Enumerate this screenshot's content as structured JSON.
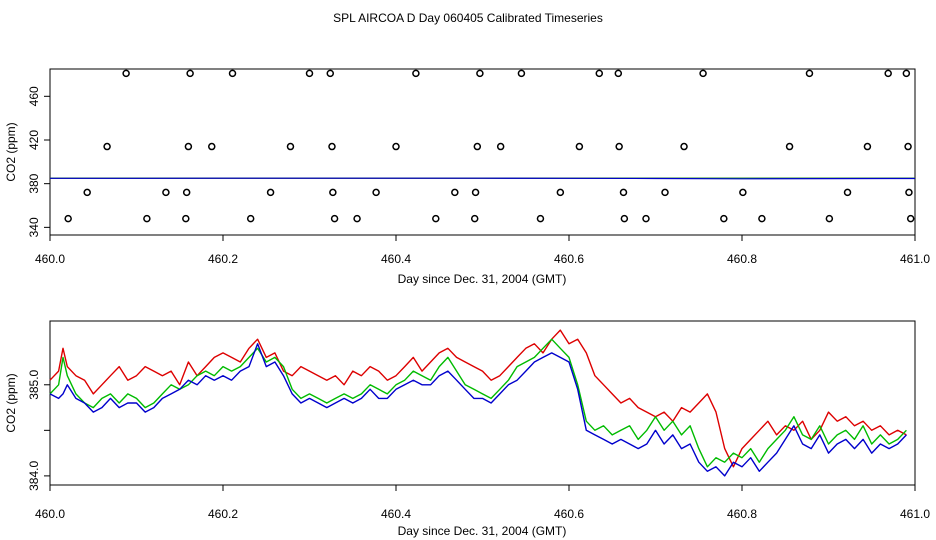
{
  "title": "SPL AIRCOA D  Day 060405  Calibrated Timeseries",
  "colors": {
    "red": "#dd0000",
    "green": "#00bb00",
    "blue": "#0000cc",
    "magenta": "#cc00cc",
    "black": "#000000"
  },
  "chart_data": [
    {
      "type": "scatter",
      "title": "",
      "xlabel": "Day since Dec. 31, 2004 (GMT)",
      "ylabel": "CO2 (ppm)",
      "xlim": [
        460.0,
        461.0
      ],
      "ylim": [
        333,
        485
      ],
      "xticks": [
        460.0,
        460.2,
        460.4,
        460.6,
        460.8,
        461.0
      ],
      "xtick_labels": [
        "460.0",
        "460.2",
        "460.4",
        "460.6",
        "460.8",
        "461.0"
      ],
      "yticks": [
        340,
        380,
        420,
        460
      ],
      "ytick_labels": [
        "340",
        "380",
        "420",
        "460"
      ],
      "points": [
        {
          "x": 460.088,
          "y": 481
        },
        {
          "x": 460.162,
          "y": 481
        },
        {
          "x": 460.211,
          "y": 481
        },
        {
          "x": 460.3,
          "y": 481
        },
        {
          "x": 460.324,
          "y": 481
        },
        {
          "x": 460.423,
          "y": 481
        },
        {
          "x": 460.497,
          "y": 481
        },
        {
          "x": 460.545,
          "y": 481
        },
        {
          "x": 460.635,
          "y": 481
        },
        {
          "x": 460.657,
          "y": 481
        },
        {
          "x": 460.755,
          "y": 481
        },
        {
          "x": 460.878,
          "y": 481
        },
        {
          "x": 460.969,
          "y": 481
        },
        {
          "x": 460.99,
          "y": 481
        },
        {
          "x": 460.066,
          "y": 414
        },
        {
          "x": 460.16,
          "y": 414
        },
        {
          "x": 460.187,
          "y": 414
        },
        {
          "x": 460.278,
          "y": 414
        },
        {
          "x": 460.326,
          "y": 414
        },
        {
          "x": 460.4,
          "y": 414
        },
        {
          "x": 460.494,
          "y": 414
        },
        {
          "x": 460.521,
          "y": 414
        },
        {
          "x": 460.612,
          "y": 414
        },
        {
          "x": 460.658,
          "y": 414
        },
        {
          "x": 460.733,
          "y": 414
        },
        {
          "x": 460.855,
          "y": 414
        },
        {
          "x": 460.945,
          "y": 414
        },
        {
          "x": 460.992,
          "y": 414
        },
        {
          "x": 460.043,
          "y": 372
        },
        {
          "x": 460.134,
          "y": 372
        },
        {
          "x": 460.158,
          "y": 372
        },
        {
          "x": 460.255,
          "y": 372
        },
        {
          "x": 460.327,
          "y": 372
        },
        {
          "x": 460.377,
          "y": 372
        },
        {
          "x": 460.468,
          "y": 372
        },
        {
          "x": 460.492,
          "y": 372
        },
        {
          "x": 460.59,
          "y": 372
        },
        {
          "x": 460.663,
          "y": 372
        },
        {
          "x": 460.711,
          "y": 372
        },
        {
          "x": 460.801,
          "y": 372
        },
        {
          "x": 460.922,
          "y": 372
        },
        {
          "x": 460.993,
          "y": 372
        },
        {
          "x": 460.021,
          "y": 348
        },
        {
          "x": 460.112,
          "y": 348
        },
        {
          "x": 460.157,
          "y": 348
        },
        {
          "x": 460.232,
          "y": 348
        },
        {
          "x": 460.329,
          "y": 348
        },
        {
          "x": 460.355,
          "y": 348
        },
        {
          "x": 460.446,
          "y": 348
        },
        {
          "x": 460.491,
          "y": 348
        },
        {
          "x": 460.567,
          "y": 348
        },
        {
          "x": 460.664,
          "y": 348
        },
        {
          "x": 460.689,
          "y": 348
        },
        {
          "x": 460.779,
          "y": 348
        },
        {
          "x": 460.823,
          "y": 348
        },
        {
          "x": 460.901,
          "y": 348
        },
        {
          "x": 460.995,
          "y": 348
        }
      ],
      "series": [
        {
          "name": "red",
          "color": "#dd0000",
          "x": [
            460.0,
            461.0
          ],
          "values": [
            385.01,
            385.01
          ]
        },
        {
          "name": "magenta",
          "color": "#cc00cc",
          "x": [
            460.0,
            461.0
          ],
          "values": [
            385.0,
            385.0
          ]
        },
        {
          "name": "green",
          "color": "#00bb00",
          "x": [
            460.0,
            461.0
          ],
          "values": [
            384.99,
            384.99
          ]
        },
        {
          "name": "blue",
          "color": "#0000cc",
          "x": [
            460.0,
            460.1,
            460.2,
            460.3,
            460.4,
            460.5,
            460.6,
            460.7,
            460.8,
            460.9,
            461.0
          ],
          "values": [
            384.9,
            384.95,
            384.98,
            385.0,
            385.0,
            385.0,
            384.9,
            384.7,
            384.5,
            384.6,
            384.7
          ]
        }
      ]
    },
    {
      "type": "line",
      "title": "",
      "xlabel": "Day since Dec. 31, 2004 (GMT)",
      "ylabel": "CO2 (ppm)",
      "xlim": [
        460.0,
        461.0
      ],
      "ylim": [
        383.9,
        385.7
      ],
      "xticks": [
        460.0,
        460.2,
        460.4,
        460.6,
        460.8,
        461.0
      ],
      "xtick_labels": [
        "460.0",
        "460.2",
        "460.4",
        "460.6",
        "460.8",
        "461.0"
      ],
      "yticks": [
        384.0,
        384.5,
        385.0
      ],
      "ytick_labels": [
        "384.0",
        "",
        "385.0"
      ],
      "series": [
        {
          "name": "red",
          "color": "#dd0000",
          "x": [
            460.0,
            460.01,
            460.015,
            460.02,
            460.03,
            460.04,
            460.05,
            460.06,
            460.07,
            460.08,
            460.09,
            460.1,
            460.11,
            460.12,
            460.13,
            460.14,
            460.15,
            460.16,
            460.17,
            460.18,
            460.19,
            460.2,
            460.21,
            460.22,
            460.23,
            460.24,
            460.25,
            460.26,
            460.27,
            460.28,
            460.29,
            460.3,
            460.31,
            460.32,
            460.33,
            460.34,
            460.35,
            460.36,
            460.37,
            460.38,
            460.39,
            460.4,
            460.41,
            460.42,
            460.43,
            460.44,
            460.45,
            460.46,
            460.47,
            460.48,
            460.49,
            460.5,
            460.51,
            460.52,
            460.53,
            460.54,
            460.55,
            460.56,
            460.57,
            460.58,
            460.59,
            460.6,
            460.61,
            460.62,
            460.63,
            460.64,
            460.65,
            460.66,
            460.67,
            460.68,
            460.69,
            460.7,
            460.71,
            460.72,
            460.73,
            460.74,
            460.75,
            460.76,
            460.77,
            460.78,
            460.79,
            460.8,
            460.81,
            460.82,
            460.83,
            460.84,
            460.85,
            460.86,
            460.87,
            460.88,
            460.89,
            460.9,
            460.91,
            460.92,
            460.93,
            460.94,
            460.95,
            460.96,
            460.97,
            460.98,
            460.99
          ],
          "values": [
            385.05,
            385.15,
            385.4,
            385.2,
            385.1,
            385.05,
            384.9,
            385.0,
            385.1,
            385.2,
            385.05,
            385.1,
            385.2,
            385.15,
            385.1,
            385.15,
            385.0,
            385.25,
            385.1,
            385.2,
            385.3,
            385.35,
            385.3,
            385.25,
            385.4,
            385.5,
            385.3,
            385.35,
            385.15,
            385.1,
            385.2,
            385.15,
            385.1,
            385.05,
            385.1,
            385.0,
            385.15,
            385.1,
            385.2,
            385.15,
            385.05,
            385.1,
            385.2,
            385.3,
            385.15,
            385.25,
            385.35,
            385.4,
            385.3,
            385.25,
            385.2,
            385.15,
            385.05,
            385.1,
            385.2,
            385.3,
            385.4,
            385.45,
            385.35,
            385.5,
            385.6,
            385.45,
            385.5,
            385.35,
            385.1,
            385.0,
            384.9,
            384.8,
            384.85,
            384.75,
            384.7,
            384.65,
            384.7,
            384.6,
            384.75,
            384.7,
            384.8,
            384.9,
            384.7,
            384.3,
            384.1,
            384.3,
            384.4,
            384.5,
            384.6,
            384.45,
            384.55,
            384.5,
            384.6,
            384.4,
            384.5,
            384.7,
            384.6,
            384.65,
            384.55,
            384.6,
            384.5,
            384.55,
            384.45,
            384.5,
            384.45
          ]
        },
        {
          "name": "green",
          "color": "#00bb00",
          "x": [
            460.0,
            460.01,
            460.015,
            460.02,
            460.03,
            460.04,
            460.05,
            460.06,
            460.07,
            460.08,
            460.09,
            460.1,
            460.11,
            460.12,
            460.13,
            460.14,
            460.15,
            460.16,
            460.17,
            460.18,
            460.19,
            460.2,
            460.21,
            460.22,
            460.23,
            460.24,
            460.25,
            460.26,
            460.27,
            460.28,
            460.29,
            460.3,
            460.31,
            460.32,
            460.33,
            460.34,
            460.35,
            460.36,
            460.37,
            460.38,
            460.39,
            460.4,
            460.41,
            460.42,
            460.43,
            460.44,
            460.45,
            460.46,
            460.47,
            460.48,
            460.49,
            460.5,
            460.51,
            460.52,
            460.53,
            460.54,
            460.55,
            460.56,
            460.57,
            460.58,
            460.59,
            460.6,
            460.61,
            460.62,
            460.63,
            460.64,
            460.65,
            460.66,
            460.67,
            460.68,
            460.69,
            460.7,
            460.71,
            460.72,
            460.73,
            460.74,
            460.75,
            460.76,
            460.77,
            460.78,
            460.79,
            460.8,
            460.81,
            460.82,
            460.83,
            460.84,
            460.85,
            460.86,
            460.87,
            460.88,
            460.89,
            460.9,
            460.91,
            460.92,
            460.93,
            460.94,
            460.95,
            460.96,
            460.97,
            460.98,
            460.99
          ],
          "values": [
            384.9,
            385.0,
            385.3,
            385.1,
            384.9,
            384.8,
            384.75,
            384.85,
            384.9,
            384.8,
            384.9,
            384.85,
            384.75,
            384.8,
            384.9,
            385.0,
            384.95,
            385.0,
            385.1,
            385.15,
            385.1,
            385.2,
            385.15,
            385.2,
            385.3,
            385.4,
            385.25,
            385.3,
            385.2,
            384.95,
            384.85,
            384.9,
            384.85,
            384.8,
            384.85,
            384.9,
            384.85,
            384.9,
            385.0,
            384.95,
            384.9,
            385.0,
            385.05,
            385.15,
            385.1,
            385.05,
            385.2,
            385.3,
            385.15,
            385.0,
            384.95,
            384.9,
            384.85,
            384.95,
            385.05,
            385.2,
            385.25,
            385.3,
            385.4,
            385.5,
            385.4,
            385.3,
            385.0,
            384.6,
            384.5,
            384.55,
            384.45,
            384.5,
            384.55,
            384.4,
            384.5,
            384.65,
            384.5,
            384.6,
            384.45,
            384.55,
            384.3,
            384.1,
            384.2,
            384.15,
            384.25,
            384.2,
            384.3,
            384.15,
            384.3,
            384.4,
            384.5,
            384.65,
            384.45,
            384.4,
            384.55,
            384.35,
            384.45,
            384.5,
            384.4,
            384.55,
            384.35,
            384.45,
            384.35,
            384.4,
            384.5
          ]
        },
        {
          "name": "blue",
          "color": "#0000cc",
          "x": [
            460.0,
            460.01,
            460.015,
            460.02,
            460.03,
            460.04,
            460.05,
            460.06,
            460.07,
            460.08,
            460.09,
            460.1,
            460.11,
            460.12,
            460.13,
            460.14,
            460.15,
            460.16,
            460.17,
            460.18,
            460.19,
            460.2,
            460.21,
            460.22,
            460.23,
            460.24,
            460.25,
            460.26,
            460.27,
            460.28,
            460.29,
            460.3,
            460.31,
            460.32,
            460.33,
            460.34,
            460.35,
            460.36,
            460.37,
            460.38,
            460.39,
            460.4,
            460.41,
            460.42,
            460.43,
            460.44,
            460.45,
            460.46,
            460.47,
            460.48,
            460.49,
            460.5,
            460.51,
            460.52,
            460.53,
            460.54,
            460.55,
            460.56,
            460.57,
            460.58,
            460.59,
            460.6,
            460.61,
            460.62,
            460.63,
            460.64,
            460.65,
            460.66,
            460.67,
            460.68,
            460.69,
            460.7,
            460.71,
            460.72,
            460.73,
            460.74,
            460.75,
            460.76,
            460.77,
            460.78,
            460.79,
            460.8,
            460.81,
            460.82,
            460.83,
            460.84,
            460.85,
            460.86,
            460.87,
            460.88,
            460.89,
            460.9,
            460.91,
            460.92,
            460.93,
            460.94,
            460.95,
            460.96,
            460.97,
            460.98,
            460.99
          ],
          "values": [
            384.9,
            384.85,
            384.9,
            385.0,
            384.85,
            384.8,
            384.7,
            384.75,
            384.85,
            384.75,
            384.8,
            384.8,
            384.7,
            384.75,
            384.85,
            384.9,
            384.95,
            385.05,
            385.0,
            385.1,
            385.05,
            385.1,
            385.05,
            385.15,
            385.2,
            385.45,
            385.2,
            385.25,
            385.1,
            384.9,
            384.8,
            384.85,
            384.8,
            384.75,
            384.8,
            384.85,
            384.8,
            384.85,
            384.95,
            384.85,
            384.85,
            384.95,
            385.0,
            385.05,
            385.0,
            385.0,
            385.1,
            385.15,
            385.05,
            384.95,
            384.85,
            384.85,
            384.8,
            384.9,
            385.0,
            385.05,
            385.15,
            385.25,
            385.3,
            385.35,
            385.3,
            385.25,
            384.95,
            384.5,
            384.45,
            384.4,
            384.35,
            384.4,
            384.35,
            384.3,
            384.35,
            384.5,
            384.35,
            384.45,
            384.3,
            384.35,
            384.15,
            384.05,
            384.1,
            384.0,
            384.15,
            384.1,
            384.2,
            384.05,
            384.15,
            384.25,
            384.4,
            384.55,
            384.35,
            384.3,
            384.45,
            384.25,
            384.35,
            384.4,
            384.3,
            384.4,
            384.25,
            384.35,
            384.3,
            384.35,
            384.45
          ]
        }
      ]
    }
  ]
}
